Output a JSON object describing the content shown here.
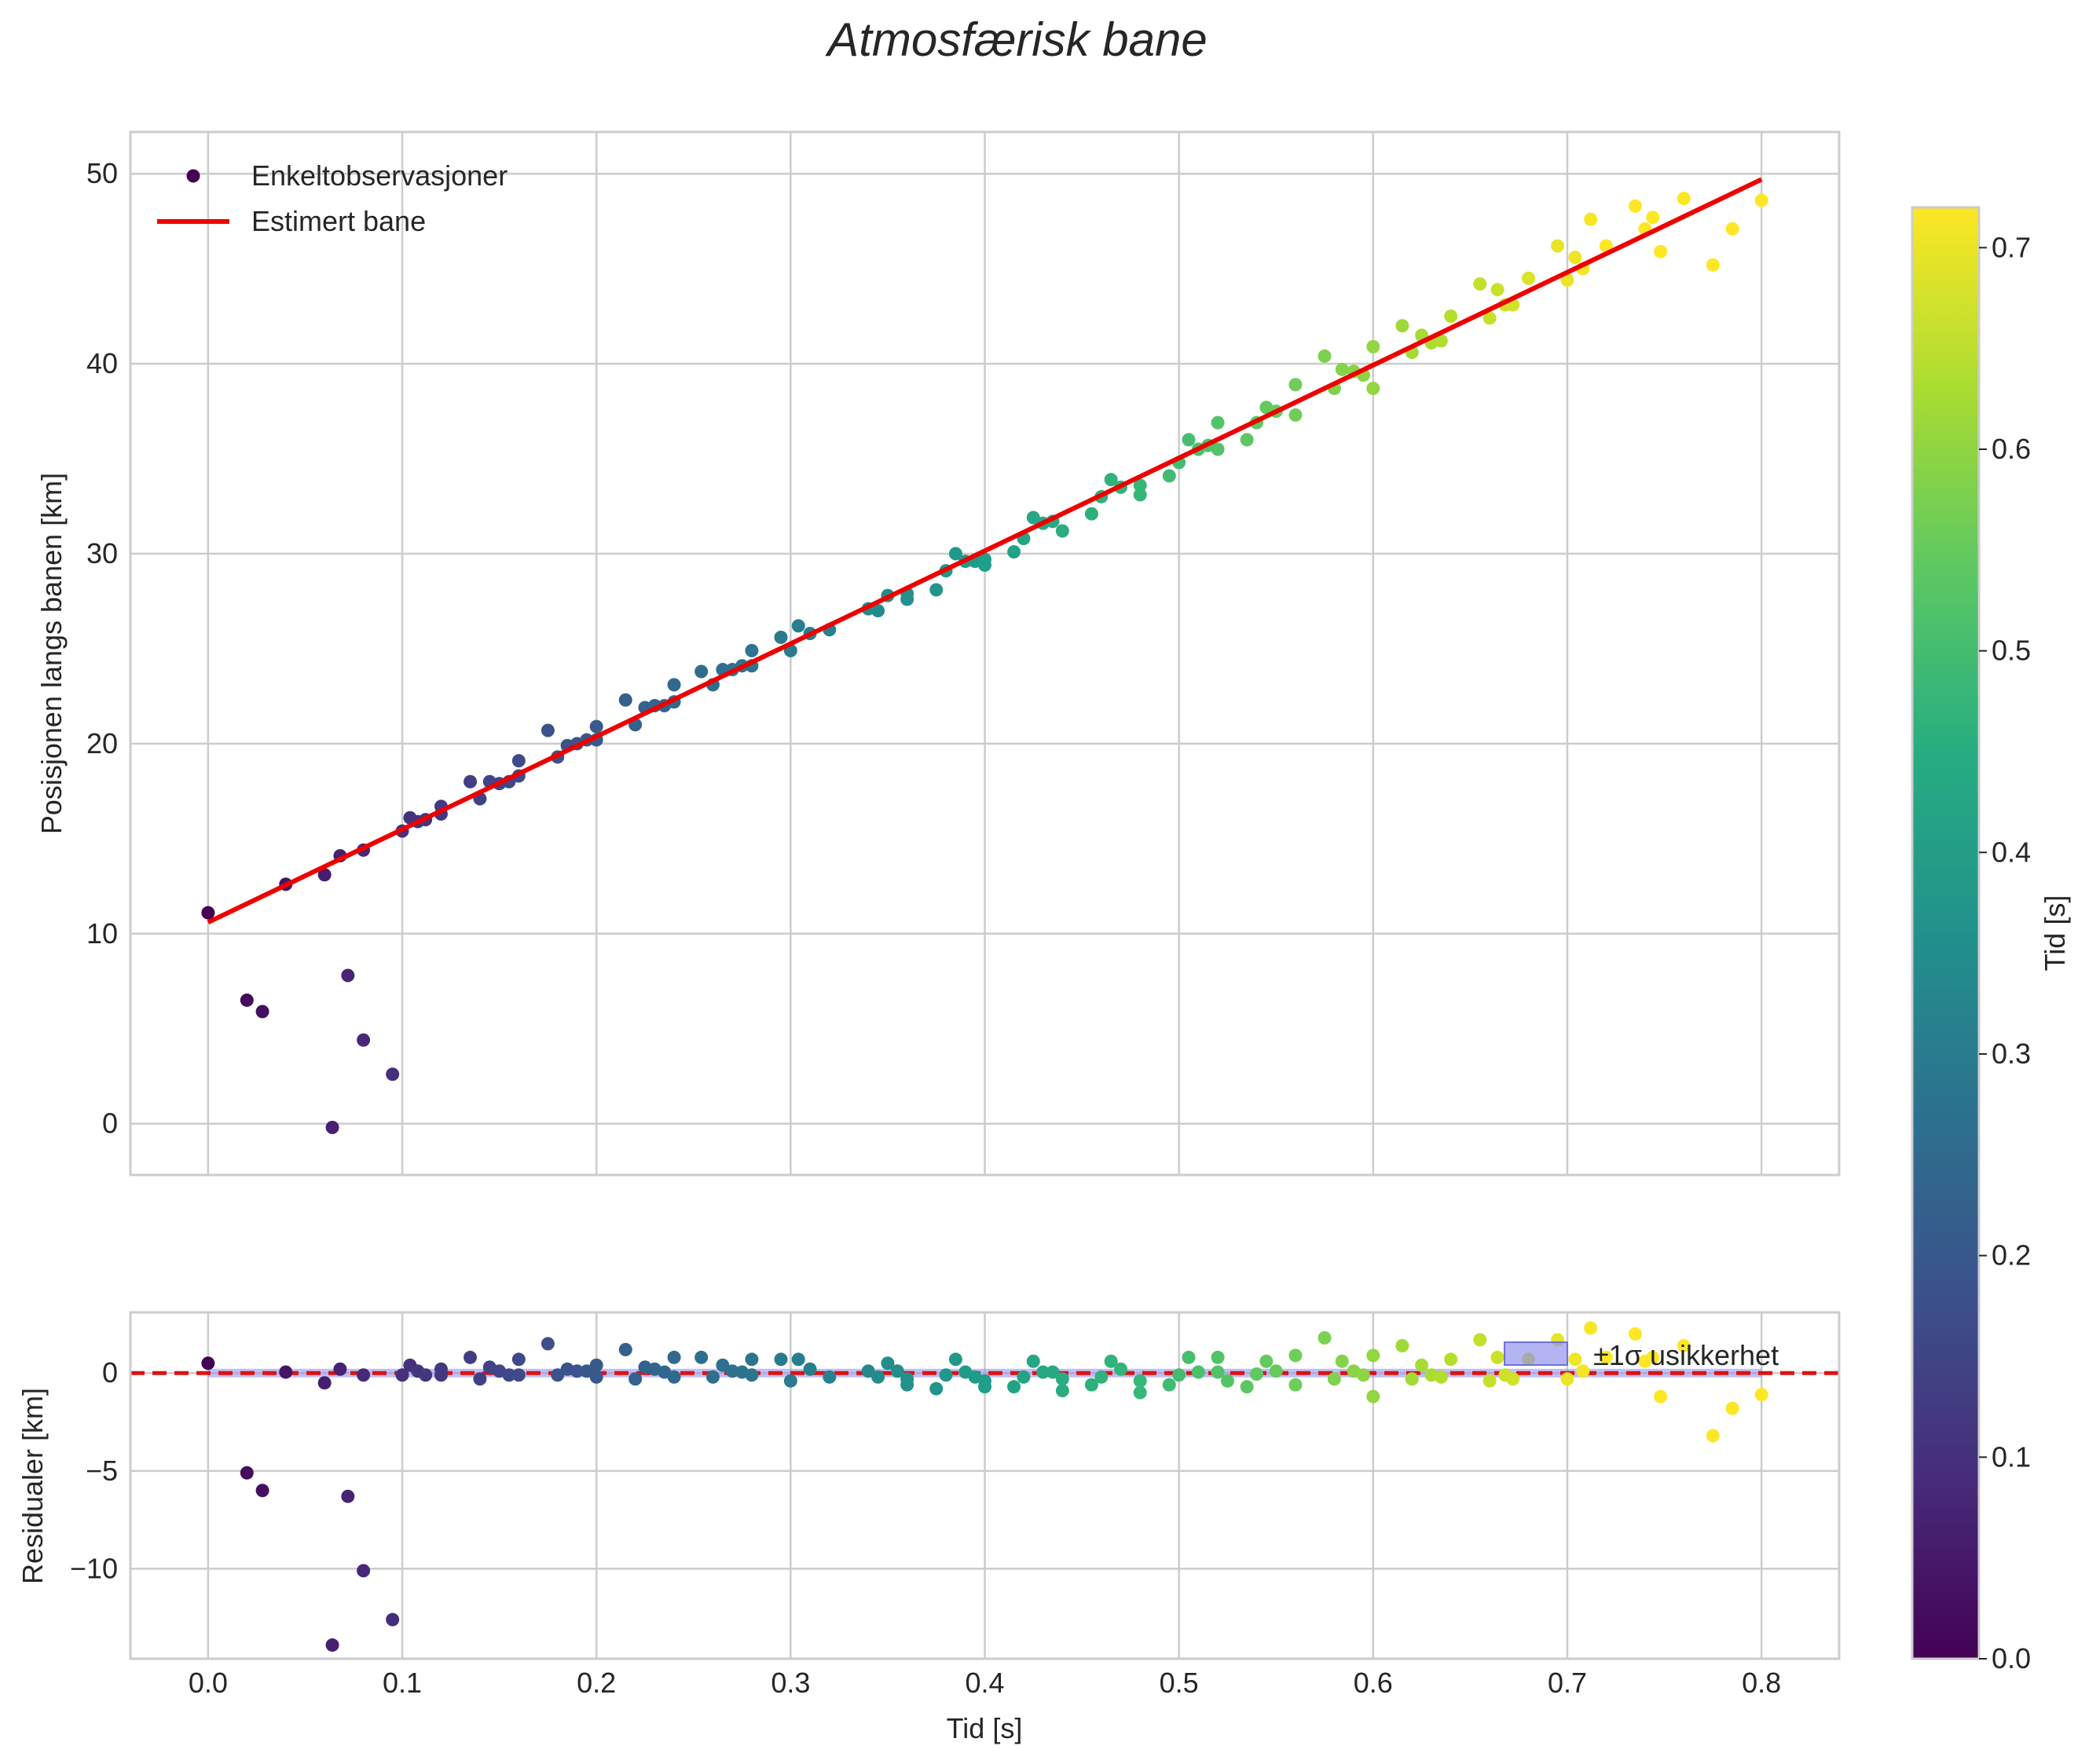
{
  "chart_data": [
    {
      "type": "scatter",
      "panel": "top",
      "title": "Atmosfærisk bane",
      "xlabel": "",
      "ylabel": "Posisjonen langs banen [km]",
      "xlim": [
        -0.04,
        0.84
      ],
      "ylim": [
        -2.7,
        52.2
      ],
      "grid": true,
      "legend_placement": "top-left",
      "xticks": [
        0.0,
        0.1,
        0.2,
        0.3,
        0.4,
        0.5,
        0.6,
        0.7,
        0.8
      ],
      "yticks": [
        0,
        10,
        20,
        30,
        40,
        50
      ],
      "ytick_labels": [
        "0",
        "10",
        "20",
        "30",
        "40",
        "50"
      ],
      "series": [
        {
          "name": "Enkeltobservasjoner",
          "kind": "scatter",
          "colormap": "viridis",
          "points": [
            [
              0.0,
              11.1
            ],
            [
              0.02,
              6.5
            ],
            [
              0.028,
              5.9
            ],
            [
              0.04,
              12.6
            ],
            [
              0.06,
              13.1
            ],
            [
              0.064,
              -0.2
            ],
            [
              0.068,
              14.1
            ],
            [
              0.072,
              7.8
            ],
            [
              0.08,
              14.4
            ],
            [
              0.08,
              4.4
            ],
            [
              0.095,
              2.6
            ],
            [
              0.1,
              15.4
            ],
            [
              0.104,
              16.1
            ],
            [
              0.108,
              15.9
            ],
            [
              0.112,
              16.0
            ],
            [
              0.12,
              16.3
            ],
            [
              0.12,
              16.7
            ],
            [
              0.135,
              18.0
            ],
            [
              0.14,
              17.1
            ],
            [
              0.145,
              18.0
            ],
            [
              0.15,
              17.9
            ],
            [
              0.155,
              18.0
            ],
            [
              0.16,
              19.1
            ],
            [
              0.16,
              18.3
            ],
            [
              0.175,
              20.7
            ],
            [
              0.18,
              19.3
            ],
            [
              0.185,
              19.9
            ],
            [
              0.19,
              20.0
            ],
            [
              0.195,
              20.2
            ],
            [
              0.2,
              20.9
            ],
            [
              0.2,
              20.2
            ],
            [
              0.215,
              22.3
            ],
            [
              0.22,
              21.0
            ],
            [
              0.225,
              21.9
            ],
            [
              0.23,
              22.0
            ],
            [
              0.235,
              22.0
            ],
            [
              0.24,
              23.1
            ],
            [
              0.24,
              22.2
            ],
            [
              0.254,
              23.8
            ],
            [
              0.26,
              23.1
            ],
            [
              0.265,
              23.9
            ],
            [
              0.27,
              23.9
            ],
            [
              0.275,
              24.1
            ],
            [
              0.28,
              24.9
            ],
            [
              0.28,
              24.1
            ],
            [
              0.295,
              25.6
            ],
            [
              0.3,
              24.9
            ],
            [
              0.304,
              26.2
            ],
            [
              0.31,
              25.8
            ],
            [
              0.32,
              26.0
            ],
            [
              0.34,
              27.1
            ],
            [
              0.345,
              27.0
            ],
            [
              0.35,
              27.8
            ],
            [
              0.36,
              27.9
            ],
            [
              0.36,
              27.6
            ],
            [
              0.375,
              28.1
            ],
            [
              0.38,
              29.1
            ],
            [
              0.385,
              30.0
            ],
            [
              0.39,
              29.6
            ],
            [
              0.395,
              29.6
            ],
            [
              0.4,
              29.7
            ],
            [
              0.4,
              29.4
            ],
            [
              0.415,
              30.1
            ],
            [
              0.42,
              30.8
            ],
            [
              0.425,
              31.9
            ],
            [
              0.43,
              31.6
            ],
            [
              0.435,
              31.7
            ],
            [
              0.44,
              31.2
            ],
            [
              0.455,
              32.1
            ],
            [
              0.46,
              33.0
            ],
            [
              0.465,
              33.9
            ],
            [
              0.47,
              33.5
            ],
            [
              0.48,
              33.6
            ],
            [
              0.48,
              33.1
            ],
            [
              0.495,
              34.1
            ],
            [
              0.5,
              34.8
            ],
            [
              0.505,
              36.0
            ],
            [
              0.51,
              35.5
            ],
            [
              0.515,
              35.7
            ],
            [
              0.52,
              35.5
            ],
            [
              0.52,
              36.9
            ],
            [
              0.535,
              36.0
            ],
            [
              0.54,
              36.9
            ],
            [
              0.545,
              37.7
            ],
            [
              0.55,
              37.5
            ],
            [
              0.56,
              38.9
            ],
            [
              0.56,
              37.3
            ],
            [
              0.575,
              40.4
            ],
            [
              0.58,
              38.7
            ],
            [
              0.584,
              39.7
            ],
            [
              0.59,
              39.6
            ],
            [
              0.595,
              39.4
            ],
            [
              0.6,
              40.9
            ],
            [
              0.6,
              38.7
            ],
            [
              0.615,
              42.0
            ],
            [
              0.62,
              40.6
            ],
            [
              0.625,
              41.5
            ],
            [
              0.63,
              41.1
            ],
            [
              0.635,
              41.2
            ],
            [
              0.64,
              42.5
            ],
            [
              0.655,
              44.2
            ],
            [
              0.66,
              42.4
            ],
            [
              0.664,
              43.9
            ],
            [
              0.668,
              43.1
            ],
            [
              0.672,
              43.1
            ],
            [
              0.68,
              44.5
            ],
            [
              0.695,
              46.2
            ],
            [
              0.7,
              44.4
            ],
            [
              0.704,
              45.6
            ],
            [
              0.708,
              45.0
            ],
            [
              0.712,
              47.6
            ],
            [
              0.72,
              46.2
            ],
            [
              0.735,
              48.3
            ],
            [
              0.74,
              47.1
            ],
            [
              0.744,
              47.7
            ],
            [
              0.748,
              45.9
            ],
            [
              0.76,
              48.7
            ],
            [
              0.775,
              45.2
            ],
            [
              0.785,
              47.1
            ],
            [
              0.8,
              48.6
            ]
          ]
        },
        {
          "name": "Estimert bane",
          "kind": "line",
          "color": "#ee0000",
          "x": [
            0.0,
            0.8
          ],
          "y": [
            10.6,
            49.7
          ]
        }
      ]
    },
    {
      "type": "scatter",
      "panel": "bottom",
      "title": "",
      "xlabel": "Tid [s]",
      "ylabel": "Residualer [km]",
      "xlim": [
        -0.04,
        0.84
      ],
      "ylim": [
        -14.6,
        3.1
      ],
      "grid": true,
      "legend_placement": "top-right",
      "xticks": [
        0.0,
        0.1,
        0.2,
        0.3,
        0.4,
        0.5,
        0.6,
        0.7,
        0.8
      ],
      "xtick_labels": [
        "0.0",
        "0.1",
        "0.2",
        "0.3",
        "0.4",
        "0.5",
        "0.6",
        "0.7",
        "0.8"
      ],
      "yticks": [
        -10,
        -5,
        0
      ],
      "ytick_labels": [
        "−10",
        "−5",
        "0"
      ],
      "reference_line": {
        "y": 0,
        "color": "#dd1111",
        "style": "dashed"
      },
      "uncertainty_band": {
        "label": "±1σ usikkerhet",
        "lower": -0.22,
        "upper": 0.22,
        "color": "#8c8cf0"
      },
      "series": [
        {
          "name": "Residualer",
          "kind": "scatter",
          "colormap": "viridis",
          "points": [
            [
              0.0,
              0.5
            ],
            [
              0.02,
              -5.1
            ],
            [
              0.028,
              -6.0
            ],
            [
              0.04,
              0.05
            ],
            [
              0.06,
              -0.5
            ],
            [
              0.064,
              -13.9
            ],
            [
              0.068,
              0.2
            ],
            [
              0.072,
              -6.3
            ],
            [
              0.08,
              -0.1
            ],
            [
              0.08,
              -10.1
            ],
            [
              0.095,
              -12.6
            ],
            [
              0.1,
              -0.1
            ],
            [
              0.104,
              0.4
            ],
            [
              0.108,
              0.1
            ],
            [
              0.112,
              -0.1
            ],
            [
              0.12,
              -0.1
            ],
            [
              0.12,
              0.2
            ],
            [
              0.135,
              0.8
            ],
            [
              0.14,
              -0.3
            ],
            [
              0.145,
              0.3
            ],
            [
              0.15,
              0.1
            ],
            [
              0.155,
              -0.1
            ],
            [
              0.16,
              0.7
            ],
            [
              0.16,
              -0.1
            ],
            [
              0.175,
              1.5
            ],
            [
              0.18,
              -0.1
            ],
            [
              0.185,
              0.2
            ],
            [
              0.19,
              0.1
            ],
            [
              0.195,
              0.1
            ],
            [
              0.2,
              0.4
            ],
            [
              0.2,
              -0.2
            ],
            [
              0.215,
              1.2
            ],
            [
              0.22,
              -0.3
            ],
            [
              0.225,
              0.3
            ],
            [
              0.23,
              0.2
            ],
            [
              0.235,
              0.05
            ],
            [
              0.24,
              0.8
            ],
            [
              0.24,
              -0.2
            ],
            [
              0.254,
              0.8
            ],
            [
              0.26,
              -0.2
            ],
            [
              0.265,
              0.4
            ],
            [
              0.27,
              0.1
            ],
            [
              0.275,
              0.05
            ],
            [
              0.28,
              0.7
            ],
            [
              0.28,
              -0.1
            ],
            [
              0.295,
              0.7
            ],
            [
              0.3,
              -0.4
            ],
            [
              0.304,
              0.7
            ],
            [
              0.31,
              0.2
            ],
            [
              0.32,
              -0.2
            ],
            [
              0.34,
              0.1
            ],
            [
              0.345,
              -0.2
            ],
            [
              0.35,
              0.5
            ],
            [
              0.355,
              0.1
            ],
            [
              0.36,
              -0.3
            ],
            [
              0.36,
              -0.6
            ],
            [
              0.375,
              -0.8
            ],
            [
              0.38,
              -0.1
            ],
            [
              0.385,
              0.7
            ],
            [
              0.39,
              0.05
            ],
            [
              0.395,
              -0.2
            ],
            [
              0.4,
              -0.4
            ],
            [
              0.4,
              -0.7
            ],
            [
              0.415,
              -0.7
            ],
            [
              0.42,
              -0.2
            ],
            [
              0.425,
              0.6
            ],
            [
              0.43,
              0.05
            ],
            [
              0.435,
              0.05
            ],
            [
              0.44,
              -0.9
            ],
            [
              0.44,
              -0.3
            ],
            [
              0.455,
              -0.6
            ],
            [
              0.46,
              -0.2
            ],
            [
              0.465,
              0.6
            ],
            [
              0.47,
              0.2
            ],
            [
              0.48,
              -0.4
            ],
            [
              0.48,
              -1.0
            ],
            [
              0.495,
              -0.6
            ],
            [
              0.5,
              -0.1
            ],
            [
              0.505,
              0.8
            ],
            [
              0.51,
              0.05
            ],
            [
              0.52,
              0.05
            ],
            [
              0.52,
              0.8
            ],
            [
              0.525,
              -0.4
            ],
            [
              0.535,
              -0.7
            ],
            [
              0.54,
              -0.05
            ],
            [
              0.545,
              0.6
            ],
            [
              0.55,
              0.1
            ],
            [
              0.56,
              0.9
            ],
            [
              0.56,
              -0.6
            ],
            [
              0.575,
              1.8
            ],
            [
              0.58,
              -0.3
            ],
            [
              0.584,
              0.6
            ],
            [
              0.59,
              0.1
            ],
            [
              0.595,
              -0.1
            ],
            [
              0.6,
              0.9
            ],
            [
              0.6,
              -1.2
            ],
            [
              0.615,
              1.4
            ],
            [
              0.62,
              -0.3
            ],
            [
              0.625,
              0.4
            ],
            [
              0.63,
              -0.1
            ],
            [
              0.635,
              -0.2
            ],
            [
              0.64,
              0.7
            ],
            [
              0.655,
              1.7
            ],
            [
              0.66,
              -0.4
            ],
            [
              0.664,
              0.8
            ],
            [
              0.668,
              -0.1
            ],
            [
              0.672,
              -0.3
            ],
            [
              0.68,
              0.7
            ],
            [
              0.695,
              1.7
            ],
            [
              0.7,
              -0.3
            ],
            [
              0.704,
              0.7
            ],
            [
              0.708,
              0.1
            ],
            [
              0.712,
              2.3
            ],
            [
              0.72,
              0.8
            ],
            [
              0.735,
              2.0
            ],
            [
              0.74,
              0.6
            ],
            [
              0.744,
              0.8
            ],
            [
              0.748,
              -1.2
            ],
            [
              0.76,
              1.4
            ],
            [
              0.775,
              -3.2
            ],
            [
              0.785,
              -1.8
            ],
            [
              0.8,
              -1.1
            ]
          ]
        }
      ]
    },
    {
      "type": "heatmap",
      "panel": "colorbar",
      "label": "Tid [s]",
      "colormap": "viridis",
      "range": [
        0.0,
        0.72
      ],
      "ticks": [
        0.0,
        0.1,
        0.2,
        0.3,
        0.4,
        0.5,
        0.6,
        0.7
      ],
      "tick_labels": [
        "0.0",
        "0.1",
        "0.2",
        "0.3",
        "0.4",
        "0.5",
        "0.6",
        "0.7"
      ]
    }
  ]
}
